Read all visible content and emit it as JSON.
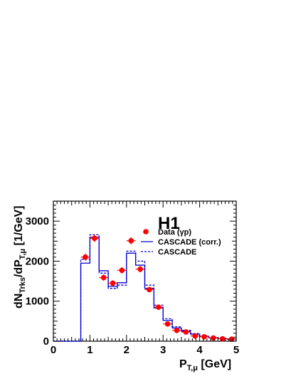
{
  "chart_data": {
    "type": "histogram",
    "title": "H1",
    "xlabel": {
      "main": "P",
      "sub": "T,μ",
      "unit": " [GeV]"
    },
    "ylabel": {
      "main": "dN",
      "sub1": "Trks",
      "mid": "/dP",
      "sub2": "T,μ",
      "unit": "  [1/GeV]"
    },
    "xlim": [
      0,
      5
    ],
    "ylim": [
      0,
      3500
    ],
    "x_ticks": [
      "0",
      "1",
      "2",
      "3",
      "4",
      "5"
    ],
    "y_ticks": [
      "0",
      "1000",
      "2000",
      "3000"
    ],
    "bin_edges": [
      0,
      0.75,
      1.0,
      1.25,
      1.5,
      1.75,
      2.0,
      2.25,
      2.5,
      2.75,
      3.0,
      3.25,
      3.5,
      3.75,
      4.0,
      4.25,
      4.5,
      4.75,
      5.0
    ],
    "series": [
      {
        "name": "Data (γp)",
        "kind": "points",
        "color": "#ff0000",
        "x": [
          0.875,
          1.125,
          1.375,
          1.625,
          1.875,
          2.125,
          2.375,
          2.625,
          2.875,
          3.125,
          3.375,
          3.625,
          3.875,
          4.125,
          4.375,
          4.625,
          4.875
        ],
        "y": [
          2100,
          2570,
          1590,
          1450,
          1770,
          2510,
          1800,
          1290,
          850,
          430,
          270,
          230,
          130,
          110,
          80,
          60,
          50
        ],
        "yerr": [
          90,
          90,
          80,
          70,
          80,
          90,
          80,
          60,
          40,
          30,
          20,
          20,
          15,
          15,
          10,
          10,
          10
        ]
      },
      {
        "name": "CASCADE (corr.)",
        "kind": "step",
        "color": "#0000cc",
        "dash": "solid",
        "values": [
          0,
          1950,
          2600,
          1760,
          1370,
          1460,
          2200,
          1900,
          1320,
          830,
          520,
          330,
          250,
          175,
          120,
          85,
          65,
          50
        ]
      },
      {
        "name": "CASCADE",
        "kind": "step",
        "color": "#0000cc",
        "dash": "dashed",
        "values": [
          0,
          2050,
          2660,
          1700,
          1320,
          1400,
          2250,
          2000,
          1400,
          900,
          560,
          360,
          270,
          190,
          135,
          95,
          70,
          55
        ]
      }
    ],
    "legend_position": "upper-right",
    "grid": false
  }
}
